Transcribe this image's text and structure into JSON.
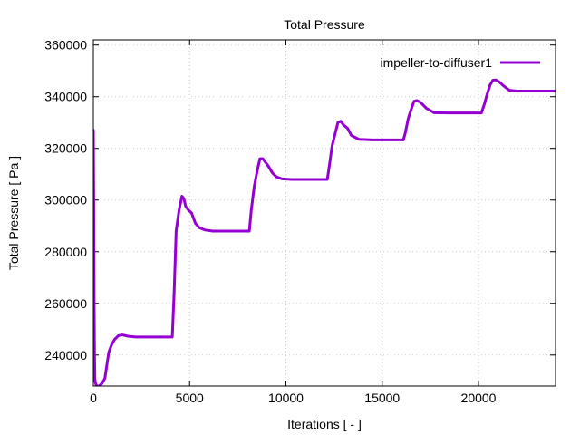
{
  "chart_data": {
    "type": "line",
    "title": "Total Pressure",
    "xlabel": "Iterations [ - ]",
    "ylabel": "Total Pressure [ Pa ]",
    "xlim": [
      0,
      24000
    ],
    "ylim": [
      228000,
      362000
    ],
    "xticks": [
      0,
      5000,
      10000,
      15000,
      20000
    ],
    "yticks": [
      240000,
      260000,
      280000,
      300000,
      320000,
      340000,
      360000
    ],
    "grid": true,
    "legend_position": "top-right",
    "colors": {
      "series": "#9400d3",
      "grid": "#c8c8c8",
      "axis": "#000000"
    },
    "series": [
      {
        "name": "impeller-to-diffuser1",
        "x": [
          0,
          20,
          40,
          60,
          80,
          100,
          140,
          200,
          300,
          450,
          600,
          700,
          800,
          950,
          1100,
          1300,
          1500,
          1800,
          2200,
          2800,
          3400,
          4100,
          4200,
          4300,
          4450,
          4600,
          4700,
          4800,
          4950,
          5100,
          5300,
          5500,
          5800,
          6200,
          6600,
          7200,
          8100,
          8200,
          8350,
          8500,
          8650,
          8800,
          8950,
          9100,
          9300,
          9500,
          9800,
          10300,
          11000,
          12150,
          12250,
          12400,
          12550,
          12700,
          12850,
          13000,
          13200,
          13400,
          13800,
          14500,
          16100,
          16200,
          16350,
          16500,
          16650,
          16800,
          16950,
          17100,
          17300,
          17700,
          18500,
          20150,
          20300,
          20450,
          20600,
          20750,
          20900,
          21100,
          21300,
          21600,
          22000,
          23000,
          24000
        ],
        "y": [
          327000,
          300000,
          262000,
          240000,
          231000,
          229500,
          228500,
          228000,
          228000,
          229000,
          231000,
          236000,
          241000,
          244000,
          246000,
          247500,
          247800,
          247300,
          247000,
          247000,
          247000,
          247000,
          265000,
          288000,
          296000,
          301500,
          300500,
          297500,
          296000,
          295000,
          291000,
          289300,
          288400,
          288000,
          288000,
          288000,
          288000,
          296000,
          305000,
          311000,
          316000,
          316000,
          314500,
          313000,
          310500,
          309000,
          308200,
          308000,
          308000,
          308000,
          313000,
          321000,
          325500,
          330000,
          330500,
          329000,
          327800,
          325000,
          323500,
          323300,
          323300,
          326000,
          331500,
          335000,
          338200,
          338500,
          338000,
          337000,
          335500,
          333800,
          333700,
          333700,
          337000,
          341000,
          344500,
          346400,
          346500,
          345600,
          344200,
          342500,
          342200,
          342200,
          342200
        ]
      }
    ]
  }
}
